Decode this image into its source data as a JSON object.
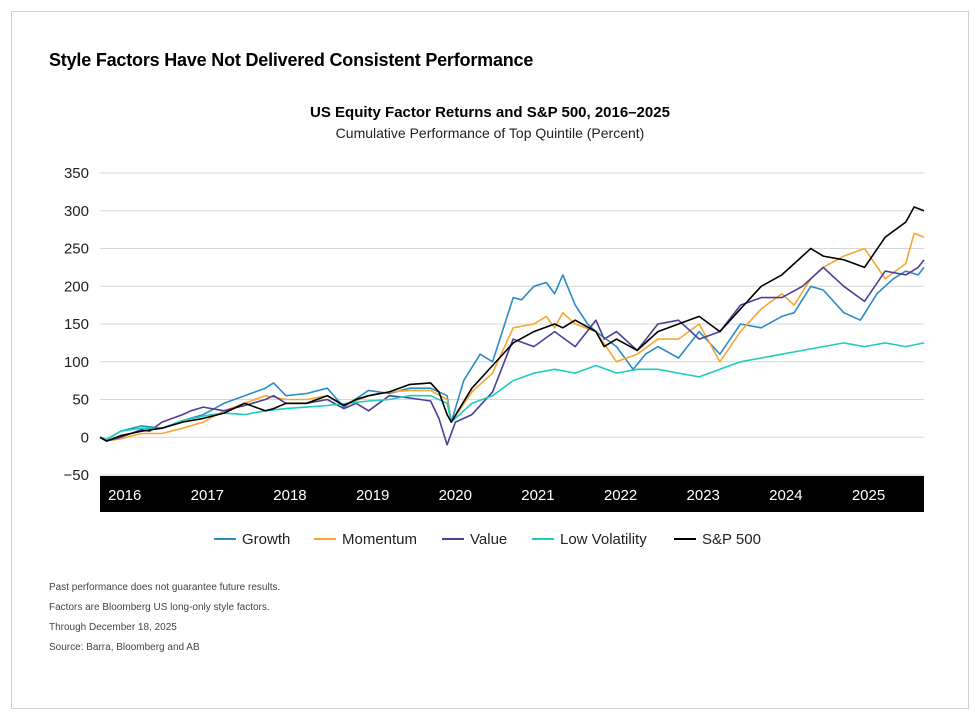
{
  "headline": "Style Factors Have Not Delivered Consistent Performance",
  "chart_data": {
    "type": "line",
    "title": "US Equity Factor Returns and S&P 500, 2016–2025",
    "subtitle": "Cumulative Performance of Top Quintile (Percent)",
    "xlabel": "",
    "ylabel": "",
    "ylim": [
      -50,
      350
    ],
    "yticks": [
      -50,
      0,
      50,
      100,
      150,
      200,
      250,
      300,
      350
    ],
    "yticklabels": [
      "−50",
      "0",
      "50",
      "100",
      "150",
      "200",
      "250",
      "300",
      "350"
    ],
    "xticklabels": [
      "2016",
      "2017",
      "2018",
      "2019",
      "2020",
      "2021",
      "2022",
      "2023",
      "2024",
      "2025"
    ],
    "x_start": 2016.0,
    "x_end": 2025.97,
    "grid": "horizontal",
    "legend_position": "bottom",
    "series": [
      {
        "name": "Growth",
        "color": "#2a8cc4",
        "x": [
          2016.0,
          2016.08,
          2016.25,
          2016.5,
          2016.75,
          2017.0,
          2017.25,
          2017.5,
          2017.75,
          2018.0,
          2018.1,
          2018.25,
          2018.5,
          2018.75,
          2018.95,
          2019.25,
          2019.5,
          2019.75,
          2020.0,
          2020.2,
          2020.25,
          2020.4,
          2020.6,
          2020.75,
          2021.0,
          2021.1,
          2021.25,
          2021.4,
          2021.5,
          2021.6,
          2021.75,
          2021.9,
          2022.0,
          2022.25,
          2022.45,
          2022.6,
          2022.75,
          2023.0,
          2023.25,
          2023.5,
          2023.75,
          2024.0,
          2024.25,
          2024.4,
          2024.6,
          2024.75,
          2025.0,
          2025.2,
          2025.4,
          2025.6,
          2025.75,
          2025.9,
          2025.97
        ],
        "y": [
          0,
          -3,
          8,
          15,
          12,
          22,
          30,
          45,
          55,
          65,
          72,
          55,
          58,
          65,
          40,
          62,
          58,
          65,
          65,
          55,
          20,
          75,
          110,
          100,
          185,
          182,
          200,
          205,
          190,
          215,
          175,
          150,
          140,
          120,
          90,
          110,
          120,
          105,
          140,
          110,
          150,
          145,
          160,
          165,
          200,
          195,
          165,
          155,
          190,
          210,
          220,
          215,
          225
        ]
      },
      {
        "name": "Momentum",
        "color": "#f5a733",
        "x": [
          2016.0,
          2016.08,
          2016.25,
          2016.5,
          2016.75,
          2017.0,
          2017.25,
          2017.5,
          2017.75,
          2018.0,
          2018.25,
          2018.5,
          2018.75,
          2018.95,
          2019.25,
          2019.5,
          2019.75,
          2020.0,
          2020.2,
          2020.25,
          2020.5,
          2020.75,
          2021.0,
          2021.25,
          2021.4,
          2021.5,
          2021.6,
          2021.75,
          2022.0,
          2022.25,
          2022.5,
          2022.75,
          2023.0,
          2023.25,
          2023.5,
          2023.75,
          2024.0,
          2024.25,
          2024.4,
          2024.6,
          2024.75,
          2025.0,
          2025.25,
          2025.5,
          2025.75,
          2025.85,
          2025.97
        ],
        "y": [
          0,
          -5,
          -2,
          5,
          5,
          12,
          20,
          35,
          45,
          55,
          50,
          50,
          55,
          42,
          55,
          60,
          62,
          62,
          50,
          20,
          60,
          85,
          145,
          150,
          160,
          145,
          165,
          150,
          140,
          100,
          110,
          130,
          130,
          150,
          100,
          140,
          170,
          190,
          175,
          210,
          225,
          240,
          250,
          210,
          230,
          270,
          265
        ]
      },
      {
        "name": "Value",
        "color": "#4b3f96",
        "x": [
          2016.0,
          2016.08,
          2016.25,
          2016.5,
          2016.6,
          2016.75,
          2017.0,
          2017.1,
          2017.25,
          2017.5,
          2017.75,
          2018.0,
          2018.1,
          2018.25,
          2018.5,
          2018.75,
          2018.95,
          2019.1,
          2019.25,
          2019.5,
          2019.75,
          2020.0,
          2020.1,
          2020.2,
          2020.3,
          2020.5,
          2020.75,
          2021.0,
          2021.25,
          2021.5,
          2021.75,
          2022.0,
          2022.1,
          2022.25,
          2022.5,
          2022.75,
          2023.0,
          2023.25,
          2023.5,
          2023.75,
          2024.0,
          2024.25,
          2024.5,
          2024.75,
          2025.0,
          2025.25,
          2025.5,
          2025.75,
          2025.9,
          2025.97
        ],
        "y": [
          0,
          -5,
          0,
          10,
          8,
          20,
          30,
          35,
          40,
          35,
          42,
          50,
          55,
          45,
          45,
          50,
          38,
          45,
          35,
          55,
          52,
          48,
          25,
          -10,
          20,
          30,
          60,
          130,
          120,
          140,
          120,
          155,
          130,
          140,
          115,
          150,
          155,
          130,
          140,
          175,
          185,
          185,
          200,
          225,
          200,
          180,
          220,
          215,
          225,
          235
        ]
      },
      {
        "name": "Low Volatility",
        "color": "#1fcbbf",
        "x": [
          2016.0,
          2016.08,
          2016.25,
          2016.5,
          2016.75,
          2017.0,
          2017.25,
          2017.5,
          2017.75,
          2018.0,
          2018.25,
          2018.5,
          2018.75,
          2019.0,
          2019.25,
          2019.5,
          2019.75,
          2020.0,
          2020.2,
          2020.25,
          2020.5,
          2020.75,
          2021.0,
          2021.25,
          2021.5,
          2021.75,
          2022.0,
          2022.25,
          2022.5,
          2022.75,
          2023.0,
          2023.25,
          2023.5,
          2023.75,
          2024.0,
          2024.25,
          2024.5,
          2024.75,
          2025.0,
          2025.25,
          2025.5,
          2025.75,
          2025.97
        ],
        "y": [
          0,
          -3,
          8,
          12,
          12,
          22,
          28,
          32,
          30,
          35,
          38,
          40,
          42,
          45,
          48,
          50,
          55,
          55,
          45,
          20,
          45,
          55,
          75,
          85,
          90,
          85,
          95,
          85,
          90,
          90,
          85,
          80,
          90,
          100,
          105,
          110,
          115,
          120,
          125,
          120,
          125,
          120,
          125
        ]
      },
      {
        "name": "S&P 500",
        "color": "#000000",
        "x": [
          2016.0,
          2016.08,
          2016.25,
          2016.5,
          2016.75,
          2017.0,
          2017.25,
          2017.5,
          2017.75,
          2018.0,
          2018.1,
          2018.25,
          2018.5,
          2018.75,
          2018.95,
          2019.1,
          2019.25,
          2019.5,
          2019.75,
          2020.0,
          2020.1,
          2020.2,
          2020.25,
          2020.5,
          2020.75,
          2021.0,
          2021.25,
          2021.5,
          2021.6,
          2021.75,
          2022.0,
          2022.1,
          2022.25,
          2022.5,
          2022.75,
          2023.0,
          2023.25,
          2023.5,
          2023.75,
          2024.0,
          2024.25,
          2024.4,
          2024.6,
          2024.75,
          2025.0,
          2025.25,
          2025.5,
          2025.75,
          2025.85,
          2025.97
        ],
        "y": [
          0,
          -5,
          2,
          8,
          12,
          20,
          25,
          32,
          45,
          35,
          38,
          45,
          45,
          55,
          42,
          50,
          55,
          60,
          70,
          72,
          60,
          30,
          20,
          65,
          95,
          125,
          140,
          150,
          145,
          155,
          140,
          120,
          130,
          115,
          140,
          150,
          160,
          140,
          170,
          200,
          215,
          230,
          250,
          240,
          235,
          225,
          265,
          285,
          305,
          300
        ]
      }
    ]
  },
  "notes": [
    "Past performance does not guarantee future results.",
    "Factors are Bloomberg US long-only style factors.",
    "Through December 18, 2025",
    "Source: Barra, Bloomberg and AB"
  ]
}
